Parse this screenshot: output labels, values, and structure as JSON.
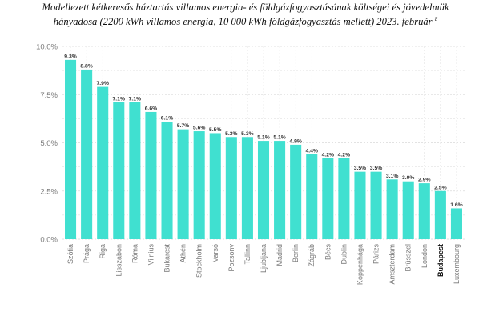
{
  "title": {
    "line1": "Modellezett kétkeresős háztartás villamos energia- és földgázfogyasztásának költségei és jövedelmük",
    "line2": "hányadosa (2200 kWh villamos energia, 10 000 kWh földgázfogyasztás mellett) 2023. február",
    "footnote": "8"
  },
  "chart_data": {
    "type": "bar",
    "categories": [
      "Szófia",
      "Prága",
      "Riga",
      "Lisszabon",
      "Róma",
      "Vilnius",
      "Bukarest",
      "Athén",
      "Stockholm",
      "Varsó",
      "Pozsony",
      "Tallinn",
      "Ljubljana",
      "Madrid",
      "Berlin",
      "Zágráb",
      "Bécs",
      "Dublin",
      "Koppenhága",
      "Párizs",
      "Amszterdam",
      "Brüsszel",
      "London",
      "Budapest",
      "Luxembourg"
    ],
    "values": [
      9.3,
      8.8,
      7.9,
      7.1,
      7.1,
      6.6,
      6.1,
      5.7,
      5.6,
      5.5,
      5.3,
      5.3,
      5.1,
      5.1,
      4.9,
      4.4,
      4.2,
      4.2,
      3.5,
      3.5,
      3.1,
      3.0,
      2.9,
      2.5,
      1.6
    ],
    "data_labels": [
      "9.3%",
      "8.8%",
      "7.9%",
      "7.1%",
      "7.1%",
      "6.6%",
      "6.1%",
      "5.7%",
      "5.6%",
      "5.5%",
      "5.3%",
      "5.3%",
      "5.1%",
      "5.1%",
      "4.9%",
      "4.4%",
      "4.2%",
      "4.2%",
      "3.5%",
      "3.5%",
      "3.1%",
      "3.0%",
      "2.9%",
      "2.5%",
      "1.6%"
    ],
    "highlight": "Budapest",
    "ylim": [
      0,
      10
    ],
    "yticks": [
      0,
      2.5,
      5,
      7.5,
      10
    ],
    "ytick_labels": [
      "0.0%",
      "2.5%",
      "5.0%",
      "7.5%",
      "10.0%"
    ],
    "xlabel": "",
    "ylabel": "",
    "grid": true,
    "legend": "none",
    "colors": {
      "bar": "#40e0d0",
      "grid": "#d9d9d9",
      "tick_text": "#7a7a7a",
      "highlight_text": "#111111"
    }
  }
}
